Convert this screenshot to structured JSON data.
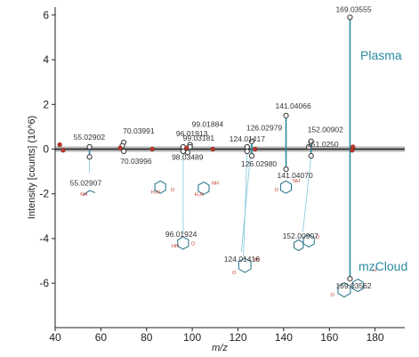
{
  "chart_data": {
    "type": "mirror-stem",
    "xlabel": "m/z",
    "ylabel": "Intensity [counts] (10^6)",
    "xlim": [
      40,
      193
    ],
    "ylim": [
      -7.1,
      6.5
    ],
    "xticks": [
      40,
      60,
      80,
      100,
      120,
      140,
      160,
      180
    ],
    "yticks": [
      6,
      4,
      2,
      0,
      -2,
      -4,
      -6
    ],
    "grid": false,
    "series": [
      {
        "name": "Plasma",
        "color": "#2a8aa0",
        "peaks": [
          {
            "mz": 55.02902,
            "y": 0.1,
            "label": "55.02902"
          },
          {
            "mz": 70.03991,
            "y": 0.3,
            "label": "70.03991"
          },
          {
            "mz": 69.4,
            "y": 0.15,
            "label": ""
          },
          {
            "mz": 96.01913,
            "y": 0.1,
            "label": "96.01913"
          },
          {
            "mz": 99.01884,
            "y": 0.2,
            "label": "99.01884"
          },
          {
            "mz": 99.03181,
            "y": 0.1,
            "label": "99.03181"
          },
          {
            "mz": 124.01417,
            "y": 0.1,
            "label": "124.01417"
          },
          {
            "mz": 126.02979,
            "y": 0.35,
            "label": "126.02979"
          },
          {
            "mz": 141.04066,
            "y": 1.5,
            "label": "141.04066"
          },
          {
            "mz": 152.00902,
            "y": 0.35,
            "label": "152.00902"
          },
          {
            "mz": 151.025,
            "y": 0.1,
            "label": "151.0250"
          },
          {
            "mz": 169.03555,
            "y": 5.9,
            "label": "169.03555"
          }
        ]
      },
      {
        "name": "mzCloud",
        "color": "#2a8aa0",
        "peaks": [
          {
            "mz": 55.02907,
            "y": -0.35,
            "label": "55.02907"
          },
          {
            "mz": 70.03996,
            "y": -0.1,
            "label": "70.03996"
          },
          {
            "mz": 98.03489,
            "y": -0.15,
            "label": "98.03489"
          },
          {
            "mz": 96.01924,
            "y": -0.1,
            "label": "96.01924"
          },
          {
            "mz": 126.0298,
            "y": -0.3,
            "label": "126.02980"
          },
          {
            "mz": 124.01416,
            "y": -0.1,
            "label": "124.01416"
          },
          {
            "mz": 141.0407,
            "y": -0.9,
            "label": "141.04070"
          },
          {
            "mz": 152.00907,
            "y": -0.3,
            "label": "152.00907"
          },
          {
            "mz": 169.03562,
            "y": -5.8,
            "label": "169.03562"
          }
        ]
      }
    ],
    "unmatched_peaks": [
      {
        "mz": 42.0,
        "y": 0.2
      },
      {
        "mz": 43.5,
        "y": -0.05
      },
      {
        "mz": 68.5,
        "y": 0.05
      },
      {
        "mz": 82.5,
        "y": 0.0
      },
      {
        "mz": 97.5,
        "y": 0.05
      },
      {
        "mz": 109.0,
        "y": 0.0
      },
      {
        "mz": 127.5,
        "y": 0.0
      },
      {
        "mz": 170.0,
        "y": -0.05
      },
      {
        "mz": 170.3,
        "y": 0.1
      }
    ],
    "unmatched_color": "#c0392b",
    "side_labels": {
      "top": "Plasma",
      "bottom": "mzCloud"
    },
    "structure_labels": [
      "NH",
      "H₂N",
      "O",
      "NH₂",
      "H",
      "N",
      "HN",
      "H⁺"
    ]
  }
}
